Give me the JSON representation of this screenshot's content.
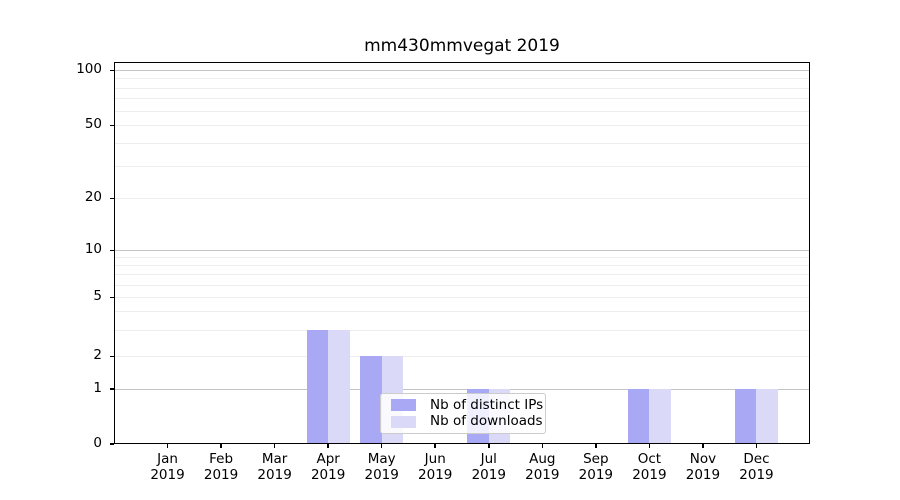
{
  "chart_data": {
    "type": "bar",
    "title": "mm430mmvegat 2019",
    "x": {
      "categories": [
        "Jan",
        "Feb",
        "Mar",
        "Apr",
        "May",
        "Jun",
        "Jul",
        "Aug",
        "Sep",
        "Oct",
        "Nov",
        "Dec"
      ],
      "year": "2019"
    },
    "y": {
      "scale": "symlog",
      "ticks": [
        0,
        1,
        2,
        5,
        10,
        20,
        50,
        100
      ],
      "range": [
        0,
        110
      ],
      "major_gridlines": [
        1,
        10,
        100
      ],
      "minor_gridlines": [
        2,
        3,
        4,
        5,
        6,
        7,
        8,
        9,
        20,
        30,
        40,
        50,
        60,
        70,
        80,
        90
      ]
    },
    "series": [
      {
        "name": "Nb of distinct IPs",
        "color": "#a8a8f5",
        "values": [
          0,
          0,
          0,
          3,
          2,
          0,
          1,
          0,
          0,
          1,
          0,
          1
        ]
      },
      {
        "name": "Nb of downloads",
        "color": "#dadaf8",
        "values": [
          0,
          0,
          0,
          3,
          2,
          0,
          1,
          0,
          0,
          1,
          0,
          1
        ]
      }
    ],
    "legend": {
      "position": "lower center"
    },
    "grid": true
  },
  "colors": {
    "grid_major": "#c4c4c4",
    "grid_minor": "#ededed",
    "axis": "#000000",
    "text": "#000000",
    "background": "#ffffff"
  }
}
